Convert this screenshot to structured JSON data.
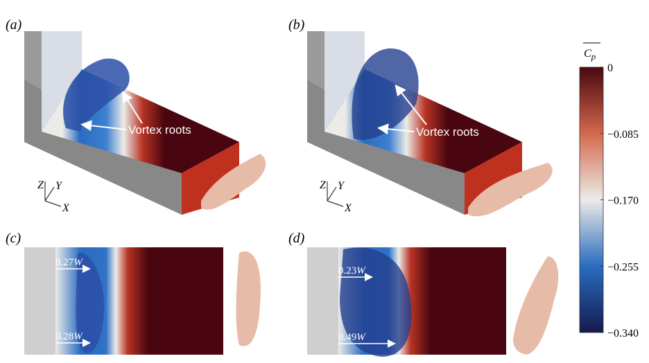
{
  "panels": [
    {
      "label": "(a)",
      "annotation": "Vortex roots",
      "axes": [
        "Z",
        "Y",
        "X"
      ]
    },
    {
      "label": "(b)",
      "annotation": "Vortex roots",
      "axes": [
        "Z",
        "Y",
        "X"
      ]
    },
    {
      "label": "(c)",
      "measures": [
        {
          "fraction": "0.27",
          "symbol": "W"
        },
        {
          "fraction": "0.28",
          "symbol": "W"
        }
      ]
    },
    {
      "label": "(d)",
      "measures": [
        {
          "fraction": "0.23",
          "symbol": "W"
        },
        {
          "fraction": "0.49",
          "symbol": "W"
        }
      ]
    }
  ],
  "colorbar": {
    "title": {
      "base": "C",
      "subscript": "p"
    },
    "lim": [
      -0.34,
      0
    ],
    "ticks": [
      0,
      {
        "value": -0.085,
        "label": "−0.085"
      },
      {
        "value": -0.17,
        "label": "−0.170"
      },
      {
        "value": -0.255,
        "label": "−0.255"
      },
      {
        "value": -0.34,
        "label": "−0.340"
      }
    ]
  }
}
